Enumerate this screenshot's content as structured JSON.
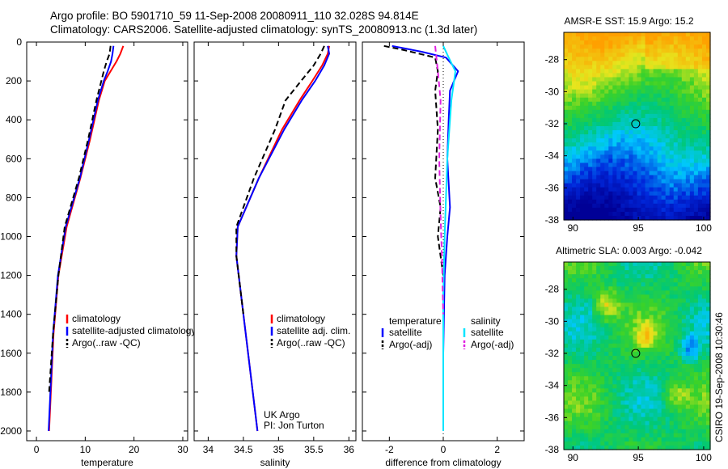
{
  "header": {
    "line1": "Argo profile: BO 5901710_59 11-Sep-2008 20080911_110 32.028S 94.814E",
    "line2": "Climatology: CARS2006. Satellite-adjusted climatology: synTS_20080913.nc (1.3d later)"
  },
  "side_label": "CSIRO 19-Sep-2008 10:30:46",
  "colors": {
    "climatology": "#ff0000",
    "satellite": "#0000ff",
    "argo": "#000000",
    "sat_salinity": "#00e5ff",
    "argo_salinity": "#e020e0"
  },
  "chart_data": [
    {
      "type": "line",
      "id": "temperature-panel",
      "xlabel": "temperature",
      "ylabel": "",
      "xlim": [
        -2,
        31
      ],
      "ylim": [
        0,
        2050
      ],
      "y_reversed": true,
      "x_ticks": [
        "0",
        "10",
        "20",
        "30"
      ],
      "y_ticks": [
        "0",
        "200",
        "400",
        "600",
        "800",
        "1000",
        "1200",
        "1400",
        "1600",
        "1800",
        "2000"
      ],
      "series": [
        {
          "name": "climatology",
          "color": "#ff0000",
          "dash": false,
          "x": [
            17.8,
            17.2,
            16.4,
            15.2,
            14.0,
            12.8,
            11.0,
            9.0,
            6.2,
            4.5,
            3.5,
            2.6
          ],
          "y": [
            20,
            60,
            100,
            150,
            200,
            300,
            500,
            700,
            950,
            1200,
            1500,
            2000
          ]
        },
        {
          "name": "satellite-adjusted climatology",
          "color": "#0000ff",
          "dash": false,
          "x": [
            15.8,
            15.6,
            15.3,
            14.6,
            13.8,
            12.6,
            10.8,
            8.9,
            6.0,
            4.4,
            3.4,
            2.5
          ],
          "y": [
            20,
            60,
            100,
            150,
            200,
            300,
            500,
            700,
            950,
            1200,
            1500,
            2000
          ]
        },
        {
          "name": "Argo(..raw -QC)",
          "color": "#000000",
          "dash": true,
          "x": [
            15.2,
            15.0,
            14.4,
            13.8,
            13.3,
            12.3,
            10.6,
            8.7,
            5.8,
            4.5,
            3.4,
            2.6
          ],
          "y": [
            20,
            60,
            100,
            150,
            200,
            300,
            500,
            700,
            950,
            1200,
            1500,
            1800
          ]
        }
      ],
      "legend": [
        "climatology",
        "satellite-adjusted climatology",
        "Argo(..raw -QC)"
      ]
    },
    {
      "type": "line",
      "id": "salinity-panel",
      "xlabel": "salinity",
      "ylabel": "",
      "xlim": [
        33.8,
        36.1
      ],
      "ylim": [
        0,
        2050
      ],
      "y_reversed": true,
      "x_ticks": [
        "34",
        "34.5",
        "35",
        "35.5",
        "36"
      ],
      "series": [
        {
          "name": "climatology",
          "color": "#ff0000",
          "dash": false,
          "x": [
            35.72,
            35.7,
            35.62,
            35.48,
            35.3,
            35.05,
            34.72,
            34.42,
            34.4,
            34.5,
            34.6,
            34.7
          ],
          "y": [
            20,
            60,
            120,
            200,
            300,
            450,
            700,
            950,
            1100,
            1400,
            1700,
            2000
          ]
        },
        {
          "name": "satellite adj. clim.",
          "color": "#0000ff",
          "dash": false,
          "x": [
            35.7,
            35.72,
            35.65,
            35.52,
            35.33,
            35.08,
            34.72,
            34.42,
            34.4,
            34.5,
            34.6,
            34.7
          ],
          "y": [
            20,
            60,
            120,
            200,
            300,
            450,
            700,
            950,
            1100,
            1400,
            1700,
            2000
          ]
        },
        {
          "name": "Argo(..raw -QC)",
          "color": "#000000",
          "dash": true,
          "x": [
            35.65,
            35.6,
            35.5,
            35.32,
            35.1,
            34.95,
            34.65,
            34.4,
            34.4,
            34.5
          ],
          "y": [
            20,
            60,
            120,
            200,
            300,
            450,
            700,
            950,
            1100,
            1400
          ]
        }
      ],
      "legend": [
        "climatology",
        "satellite adj. clim.",
        "Argo(..raw -QC)"
      ],
      "annotation": [
        "UK Argo",
        "PI: Jon Turton"
      ]
    },
    {
      "type": "line",
      "id": "difference-panel",
      "xlabel": "difference from climatology",
      "ylabel": "",
      "xlim": [
        -3,
        3
      ],
      "ylim": [
        0,
        2050
      ],
      "y_reversed": true,
      "x_ticks": [
        "-2",
        "0",
        "2"
      ],
      "series": [
        {
          "name": "temperature satellite",
          "color": "#0000ff",
          "dash": false,
          "x": [
            -1.9,
            -0.8,
            0.1,
            0.55,
            0.25,
            0.2,
            0.15,
            0.25,
            0.15,
            0.05,
            0.0,
            0.0
          ],
          "y": [
            20,
            50,
            80,
            150,
            250,
            400,
            600,
            850,
            1000,
            1200,
            1600,
            2000
          ]
        },
        {
          "name": "temperature Argo(-adj)",
          "color": "#000000",
          "dash": true,
          "x": [
            -2.2,
            -1.5,
            -0.3,
            -0.2,
            -0.3,
            -0.2,
            -0.3,
            -0.1,
            -0.2,
            0.0
          ],
          "y": [
            20,
            40,
            80,
            150,
            250,
            450,
            700,
            850,
            1000,
            1200
          ]
        },
        {
          "name": "salinity satellite",
          "color": "#00e5ff",
          "dash": false,
          "x": [
            0.0,
            0.2,
            0.45,
            0.3,
            0.15,
            0.05,
            0.0,
            0.0,
            0.0
          ],
          "y": [
            20,
            80,
            150,
            300,
            600,
            1000,
            1300,
            1600,
            2000
          ]
        },
        {
          "name": "salinity Argo(-adj)",
          "color": "#e020e0",
          "dash": true,
          "x": [
            -0.3,
            -0.2,
            -0.1,
            -0.15,
            -0.1,
            -0.05,
            0.0
          ],
          "y": [
            20,
            150,
            300,
            600,
            900,
            1100,
            1400
          ]
        }
      ],
      "legend_headers": [
        "temperature",
        "salinity"
      ],
      "legend_left": [
        "satellite",
        "Argo(-adj)"
      ],
      "legend_right": [
        "satellite",
        "Argo(-adj)"
      ]
    },
    {
      "type": "heatmap",
      "id": "sst-map",
      "title": "AMSR-E SST: 15.9 Argo: 15.2",
      "xlim": [
        89.3,
        100.5
      ],
      "ylim": [
        -38,
        -26.3
      ],
      "x_ticks": [
        "90",
        "95",
        "100"
      ],
      "y_ticks": [
        "-28",
        "-30",
        "-32",
        "-34",
        "-36",
        "-38"
      ],
      "marker": {
        "lon": 94.8,
        "lat": -32.0
      }
    },
    {
      "type": "heatmap",
      "id": "sla-map",
      "title": "Altimetric SLA: 0.003 Argo: -0.042",
      "xlim": [
        89.3,
        100.5
      ],
      "ylim": [
        -38,
        -26.3
      ],
      "x_ticks": [
        "90",
        "95",
        "100"
      ],
      "y_ticks": [
        "-28",
        "-30",
        "-32",
        "-34",
        "-36",
        "-38"
      ],
      "marker": {
        "lon": 94.8,
        "lat": -32.0
      }
    }
  ]
}
